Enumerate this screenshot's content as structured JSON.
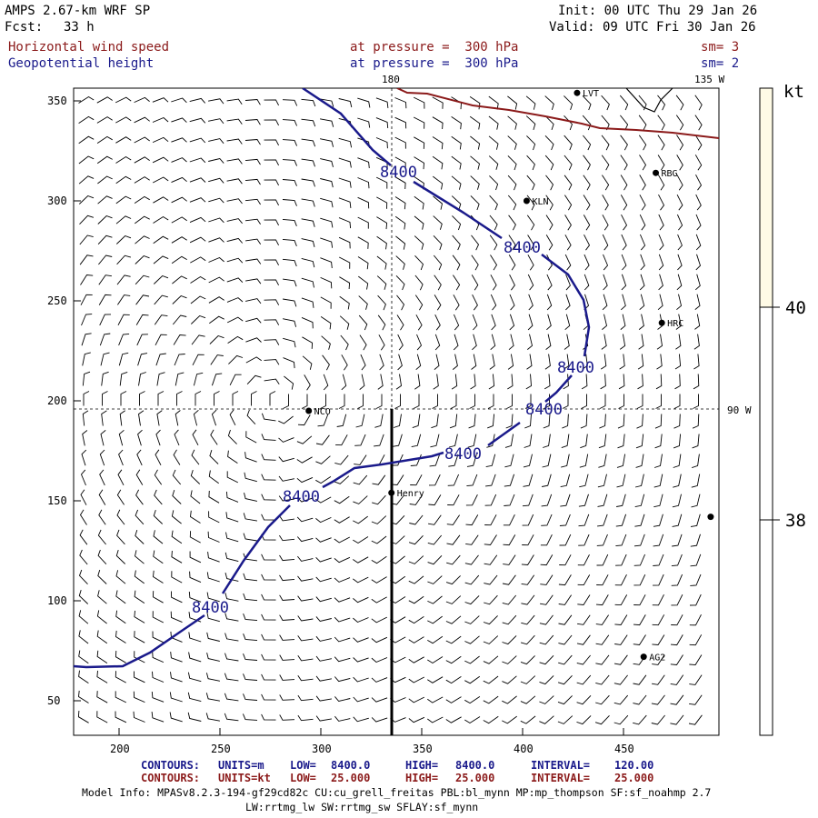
{
  "header": {
    "model": "AMPS 2.67-km WRF SP",
    "init": "Init: 00 UTC Thu 29 Jan 26",
    "fcst_label": "Fcst:",
    "fcst_value": "33 h",
    "valid": "Valid: 09 UTC Fri 30 Jan 26",
    "field1": {
      "name": "Horizontal wind speed",
      "level": "at pressure =  300 hPa",
      "sm": "sm= 3"
    },
    "field2": {
      "name": "Geopotential height",
      "level": "at pressure =  300 hPa",
      "sm": "sm= 2"
    }
  },
  "map": {
    "meridian_top_label": "180",
    "meridian_right_top_label": "135 W",
    "parallel_right_label": "90 W",
    "x_ticks": [
      "200",
      "250",
      "300",
      "350",
      "400",
      "450"
    ],
    "y_ticks": [
      "350",
      "300",
      "250",
      "200",
      "150",
      "100",
      "50"
    ],
    "contour_label": "8400",
    "colors": {
      "contour": "#1a1a8b",
      "coast": "#8b1a1a",
      "barb": "#000000",
      "fill": "#fffbe6"
    },
    "stations": [
      {
        "id": "LVT",
        "x": 427,
        "y": 354
      },
      {
        "id": "RBG",
        "x": 466,
        "y": 314
      },
      {
        "id": "KLN",
        "x": 402,
        "y": 300
      },
      {
        "id": "HRC",
        "x": 469,
        "y": 239
      },
      {
        "id": "NCO",
        "x": 294,
        "y": 195
      },
      {
        "id": "Henry",
        "x": 335,
        "y": 154
      },
      {
        "id": "AG2",
        "x": 460,
        "y": 72
      }
    ],
    "edge_marker": {
      "x": 495,
      "y": 142
    }
  },
  "colorbar": {
    "unit": "kt",
    "labels": [
      "40",
      "38"
    ]
  },
  "footer": {
    "row1": {
      "a": "CONTOURS:",
      "b": "UNITS=m",
      "c": "LOW=",
      "d": "8400.0",
      "e": "HIGH=",
      "f": "8400.0",
      "g": "INTERVAL=",
      "h": "120.00"
    },
    "row2": {
      "a": "CONTOURS:",
      "b": "UNITS=kt",
      "c": "LOW=",
      "d": "25.000",
      "e": "HIGH=",
      "f": "25.000",
      "g": "INTERVAL=",
      "h": "25.000"
    },
    "model_info": "Model Info: MPASv8.2.3-194-gf29cd82c CU:cu_grell_freitas PBL:bl_mynn MP:mp_thompson SF:sf_noahmp 2.7",
    "model_info2": "LW:rrtmg_lw SW:rrtmg_sw SFLAY:sf_mynn"
  }
}
